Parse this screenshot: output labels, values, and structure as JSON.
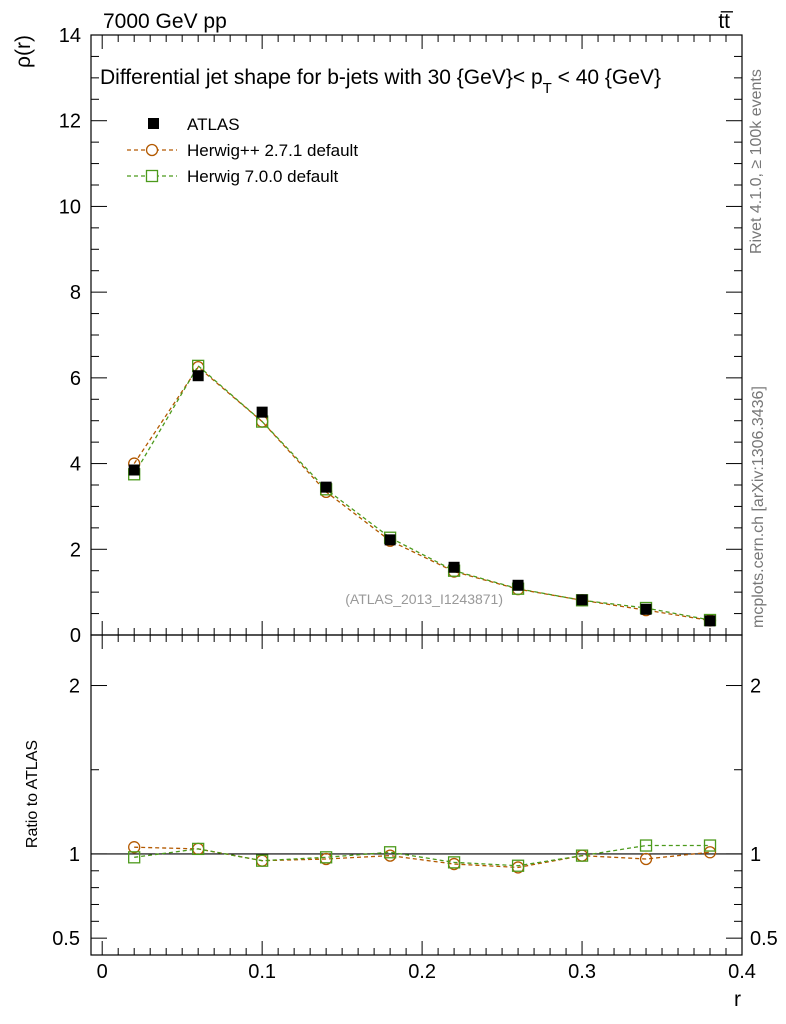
{
  "header": {
    "energy_label": "7000 GeV pp",
    "process_label": "tt̅"
  },
  "side_labels": {
    "rivet": "Rivet 4.1.0, ≥ 100k events",
    "mcplots": "mcplots.cern.ch [arXiv:1306.3436]"
  },
  "chart_data": {
    "type": "line",
    "title_parts": {
      "before": "Differential jet shape for b-jets with 30 {GeV}< p",
      "sub": "T",
      "after": " < 40 {GeV}"
    },
    "analysis_label": "(ATLAS_2013_I1243871)",
    "xlabel": "r",
    "ylabel": "ρ(r)",
    "ratio_ylabel": "Ratio to ATLAS",
    "xlim": [
      -0.007,
      0.4
    ],
    "ylim": [
      0,
      14
    ],
    "ratio_ylim": [
      0.4,
      2.3
    ],
    "x_ticks": [
      0,
      0.1,
      0.2,
      0.3,
      0.4
    ],
    "x_tick_labels": [
      "0",
      "0.1",
      "0.2",
      "0.3",
      "0.4"
    ],
    "y_ticks": [
      0,
      2,
      4,
      6,
      8,
      10,
      12,
      14
    ],
    "y_tick_labels": [
      "0",
      "2",
      "4",
      "6",
      "8",
      "10",
      "12",
      "14"
    ],
    "ratio_ticks": [
      0.5,
      1,
      2
    ],
    "ratio_tick_labels": [
      "0.5",
      "1",
      "2"
    ],
    "x": [
      0.02,
      0.06,
      0.1,
      0.14,
      0.18,
      0.22,
      0.26,
      0.3,
      0.34,
      0.38
    ],
    "series": [
      {
        "name": "ATLAS",
        "marker": "filled-square",
        "color": "#000000",
        "values": [
          3.85,
          6.05,
          5.2,
          3.45,
          2.22,
          1.58,
          1.16,
          0.82,
          0.6,
          0.33
        ]
      },
      {
        "name": "Herwig++ 2.7.1 default",
        "marker": "open-circle",
        "color": "#b35900",
        "values": [
          4.0,
          6.25,
          4.98,
          3.34,
          2.2,
          1.48,
          1.07,
          0.81,
          0.58,
          0.34
        ],
        "ratio": [
          1.04,
          1.03,
          0.96,
          0.97,
          0.99,
          0.94,
          0.92,
          0.99,
          0.97,
          1.01
        ]
      },
      {
        "name": "Herwig 7.0.0 default",
        "marker": "open-square",
        "color": "#4c9a1c",
        "values": [
          3.75,
          6.28,
          4.98,
          3.4,
          2.27,
          1.5,
          1.08,
          0.81,
          0.63,
          0.35
        ],
        "ratio": [
          0.98,
          1.03,
          0.96,
          0.98,
          1.01,
          0.95,
          0.93,
          0.99,
          1.05,
          1.05
        ]
      }
    ]
  }
}
